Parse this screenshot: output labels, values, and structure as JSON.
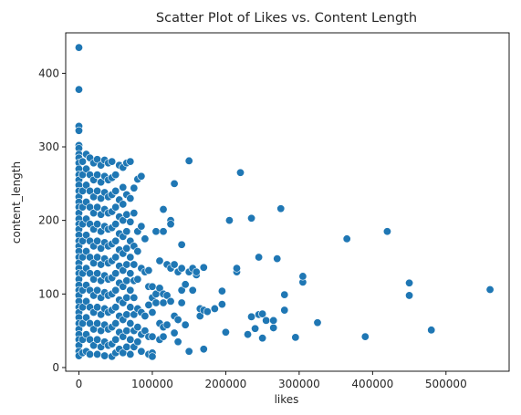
{
  "chart_data": {
    "type": "scatter",
    "title": "Scatter Plot of Likes vs. Content Length",
    "xlabel": "likes",
    "ylabel": "content_length",
    "xlim": [
      -18000,
      586000
    ],
    "ylim": [
      -5,
      455
    ],
    "xticks": [
      0,
      100000,
      200000,
      300000,
      400000,
      500000
    ],
    "xtick_labels": [
      "0",
      "100000",
      "200000",
      "300000",
      "400000",
      "500000"
    ],
    "yticks": [
      0,
      100,
      200,
      300,
      400
    ],
    "ytick_labels": [
      "0",
      "100",
      "200",
      "300",
      "400"
    ],
    "grid": false,
    "legend": "none",
    "marker_color": "#1f77b4",
    "points": [
      [
        0,
        435
      ],
      [
        0,
        378
      ],
      [
        0,
        328
      ],
      [
        0,
        322
      ],
      [
        0,
        302
      ],
      [
        0,
        298
      ],
      [
        0,
        290
      ],
      [
        0,
        285
      ],
      [
        0,
        278
      ],
      [
        0,
        270
      ],
      [
        0,
        262
      ],
      [
        0,
        255
      ],
      [
        0,
        248
      ],
      [
        0,
        240
      ],
      [
        0,
        232
      ],
      [
        0,
        225
      ],
      [
        0,
        218
      ],
      [
        0,
        210
      ],
      [
        0,
        202
      ],
      [
        0,
        195
      ],
      [
        0,
        188
      ],
      [
        0,
        180
      ],
      [
        0,
        172
      ],
      [
        0,
        165
      ],
      [
        0,
        158
      ],
      [
        0,
        150
      ],
      [
        0,
        142
      ],
      [
        0,
        135
      ],
      [
        0,
        128
      ],
      [
        0,
        120
      ],
      [
        0,
        112
      ],
      [
        0,
        105
      ],
      [
        0,
        98
      ],
      [
        0,
        90
      ],
      [
        0,
        82
      ],
      [
        0,
        75
      ],
      [
        0,
        68
      ],
      [
        0,
        60
      ],
      [
        0,
        52
      ],
      [
        0,
        45
      ],
      [
        0,
        38
      ],
      [
        0,
        30
      ],
      [
        0,
        22
      ],
      [
        0,
        16
      ],
      [
        5000,
        280
      ],
      [
        5000,
        262
      ],
      [
        5000,
        240
      ],
      [
        5000,
        218
      ],
      [
        5000,
        195
      ],
      [
        5000,
        172
      ],
      [
        5000,
        150
      ],
      [
        5000,
        128
      ],
      [
        5000,
        105
      ],
      [
        5000,
        82
      ],
      [
        5000,
        60
      ],
      [
        5000,
        38
      ],
      [
        5000,
        20
      ],
      [
        10000,
        290
      ],
      [
        10000,
        270
      ],
      [
        10000,
        248
      ],
      [
        10000,
        225
      ],
      [
        10000,
        202
      ],
      [
        10000,
        180
      ],
      [
        10000,
        158
      ],
      [
        10000,
        135
      ],
      [
        10000,
        112
      ],
      [
        10000,
        90
      ],
      [
        10000,
        68
      ],
      [
        10000,
        45
      ],
      [
        10000,
        22
      ],
      [
        15000,
        285
      ],
      [
        15000,
        262
      ],
      [
        15000,
        240
      ],
      [
        15000,
        218
      ],
      [
        15000,
        195
      ],
      [
        15000,
        172
      ],
      [
        15000,
        150
      ],
      [
        15000,
        128
      ],
      [
        15000,
        105
      ],
      [
        15000,
        82
      ],
      [
        15000,
        60
      ],
      [
        15000,
        38
      ],
      [
        15000,
        18
      ],
      [
        20000,
        278
      ],
      [
        20000,
        255
      ],
      [
        20000,
        232
      ],
      [
        20000,
        210
      ],
      [
        20000,
        188
      ],
      [
        20000,
        165
      ],
      [
        20000,
        142
      ],
      [
        20000,
        120
      ],
      [
        20000,
        98
      ],
      [
        20000,
        75
      ],
      [
        20000,
        52
      ],
      [
        20000,
        30
      ],
      [
        25000,
        283
      ],
      [
        25000,
        262
      ],
      [
        25000,
        240
      ],
      [
        25000,
        218
      ],
      [
        25000,
        195
      ],
      [
        25000,
        172
      ],
      [
        25000,
        150
      ],
      [
        25000,
        128
      ],
      [
        25000,
        105
      ],
      [
        25000,
        82
      ],
      [
        25000,
        60
      ],
      [
        25000,
        38
      ],
      [
        25000,
        18
      ],
      [
        30000,
        275
      ],
      [
        30000,
        252
      ],
      [
        30000,
        230
      ],
      [
        30000,
        208
      ],
      [
        30000,
        185
      ],
      [
        30000,
        162
      ],
      [
        30000,
        140
      ],
      [
        30000,
        118
      ],
      [
        30000,
        95
      ],
      [
        30000,
        72
      ],
      [
        30000,
        50
      ],
      [
        30000,
        28
      ],
      [
        35000,
        282
      ],
      [
        35000,
        260
      ],
      [
        35000,
        238
      ],
      [
        35000,
        215
      ],
      [
        35000,
        192
      ],
      [
        35000,
        170
      ],
      [
        35000,
        148
      ],
      [
        35000,
        125
      ],
      [
        35000,
        102
      ],
      [
        35000,
        80
      ],
      [
        35000,
        58
      ],
      [
        35000,
        35
      ],
      [
        35000,
        16
      ],
      [
        40000,
        278
      ],
      [
        40000,
        255
      ],
      [
        40000,
        232
      ],
      [
        40000,
        210
      ],
      [
        40000,
        188
      ],
      [
        40000,
        165
      ],
      [
        40000,
        142
      ],
      [
        40000,
        120
      ],
      [
        40000,
        98
      ],
      [
        40000,
        75
      ],
      [
        40000,
        52
      ],
      [
        40000,
        30
      ],
      [
        45000,
        280
      ],
      [
        45000,
        258
      ],
      [
        45000,
        235
      ],
      [
        45000,
        212
      ],
      [
        45000,
        190
      ],
      [
        45000,
        168
      ],
      [
        45000,
        145
      ],
      [
        45000,
        122
      ],
      [
        45000,
        100
      ],
      [
        45000,
        78
      ],
      [
        45000,
        55
      ],
      [
        45000,
        32
      ],
      [
        45000,
        15
      ],
      [
        50000,
        262
      ],
      [
        50000,
        240
      ],
      [
        50000,
        218
      ],
      [
        50000,
        195
      ],
      [
        50000,
        172
      ],
      [
        50000,
        150
      ],
      [
        50000,
        128
      ],
      [
        50000,
        105
      ],
      [
        50000,
        82
      ],
      [
        50000,
        60
      ],
      [
        50000,
        38
      ],
      [
        50000,
        20
      ],
      [
        55000,
        275
      ],
      [
        55000,
        228
      ],
      [
        55000,
        205
      ],
      [
        55000,
        182
      ],
      [
        55000,
        160
      ],
      [
        55000,
        138
      ],
      [
        55000,
        115
      ],
      [
        55000,
        92
      ],
      [
        55000,
        70
      ],
      [
        55000,
        48
      ],
      [
        55000,
        25
      ],
      [
        60000,
        272
      ],
      [
        60000,
        245
      ],
      [
        60000,
        222
      ],
      [
        60000,
        200
      ],
      [
        60000,
        178
      ],
      [
        60000,
        155
      ],
      [
        60000,
        132
      ],
      [
        60000,
        110
      ],
      [
        60000,
        88
      ],
      [
        60000,
        65
      ],
      [
        60000,
        42
      ],
      [
        60000,
        20
      ],
      [
        65000,
        278
      ],
      [
        65000,
        235
      ],
      [
        65000,
        208
      ],
      [
        65000,
        185
      ],
      [
        65000,
        162
      ],
      [
        65000,
        140
      ],
      [
        65000,
        118
      ],
      [
        65000,
        95
      ],
      [
        65000,
        72
      ],
      [
        65000,
        50
      ],
      [
        65000,
        28
      ],
      [
        70000,
        280
      ],
      [
        70000,
        230
      ],
      [
        70000,
        198
      ],
      [
        70000,
        172
      ],
      [
        70000,
        150
      ],
      [
        70000,
        128
      ],
      [
        70000,
        105
      ],
      [
        70000,
        82
      ],
      [
        70000,
        60
      ],
      [
        70000,
        38
      ],
      [
        70000,
        18
      ],
      [
        75000,
        244
      ],
      [
        75000,
        210
      ],
      [
        75000,
        165
      ],
      [
        75000,
        140
      ],
      [
        75000,
        118
      ],
      [
        75000,
        95
      ],
      [
        75000,
        72
      ],
      [
        75000,
        50
      ],
      [
        75000,
        28
      ],
      [
        80000,
        256
      ],
      [
        80000,
        185
      ],
      [
        80000,
        158
      ],
      [
        80000,
        120
      ],
      [
        80000,
        80
      ],
      [
        80000,
        55
      ],
      [
        80000,
        35
      ],
      [
        85000,
        260
      ],
      [
        85000,
        192
      ],
      [
        85000,
        135
      ],
      [
        85000,
        75
      ],
      [
        85000,
        45
      ],
      [
        85000,
        22
      ],
      [
        90000,
        175
      ],
      [
        90000,
        130
      ],
      [
        90000,
        70
      ],
      [
        90000,
        50
      ],
      [
        95000,
        132
      ],
      [
        95000,
        110
      ],
      [
        95000,
        85
      ],
      [
        95000,
        42
      ],
      [
        95000,
        18
      ],
      [
        100000,
        110
      ],
      [
        100000,
        95
      ],
      [
        100000,
        75
      ],
      [
        100000,
        42
      ],
      [
        100000,
        20
      ],
      [
        100000,
        15
      ],
      [
        105000,
        185
      ],
      [
        105000,
        100
      ],
      [
        105000,
        88
      ],
      [
        110000,
        145
      ],
      [
        110000,
        108
      ],
      [
        110000,
        60
      ],
      [
        110000,
        38
      ],
      [
        115000,
        215
      ],
      [
        115000,
        185
      ],
      [
        115000,
        100
      ],
      [
        115000,
        88
      ],
      [
        115000,
        55
      ],
      [
        115000,
        42
      ],
      [
        120000,
        140
      ],
      [
        120000,
        98
      ],
      [
        120000,
        58
      ],
      [
        125000,
        200
      ],
      [
        125000,
        195
      ],
      [
        125000,
        135
      ],
      [
        125000,
        90
      ],
      [
        130000,
        250
      ],
      [
        130000,
        140
      ],
      [
        130000,
        70
      ],
      [
        130000,
        47
      ],
      [
        135000,
        130
      ],
      [
        135000,
        65
      ],
      [
        135000,
        35
      ],
      [
        140000,
        167
      ],
      [
        140000,
        135
      ],
      [
        140000,
        105
      ],
      [
        140000,
        88
      ],
      [
        145000,
        113
      ],
      [
        145000,
        58
      ],
      [
        150000,
        281
      ],
      [
        150000,
        130
      ],
      [
        150000,
        22
      ],
      [
        155000,
        105
      ],
      [
        155000,
        135
      ],
      [
        160000,
        126
      ],
      [
        160000,
        130
      ],
      [
        165000,
        80
      ],
      [
        165000,
        70
      ],
      [
        170000,
        136
      ],
      [
        170000,
        78
      ],
      [
        170000,
        25
      ],
      [
        175000,
        76
      ],
      [
        185000,
        80
      ],
      [
        195000,
        86
      ],
      [
        195000,
        104
      ],
      [
        200000,
        48
      ],
      [
        205000,
        200
      ],
      [
        215000,
        130
      ],
      [
        215000,
        135
      ],
      [
        220000,
        265
      ],
      [
        230000,
        45
      ],
      [
        235000,
        203
      ],
      [
        235000,
        69
      ],
      [
        240000,
        53
      ],
      [
        245000,
        72
      ],
      [
        245000,
        150
      ],
      [
        250000,
        40
      ],
      [
        250000,
        73
      ],
      [
        255000,
        64
      ],
      [
        265000,
        54
      ],
      [
        265000,
        64
      ],
      [
        270000,
        148
      ],
      [
        275000,
        216
      ],
      [
        280000,
        99
      ],
      [
        280000,
        78
      ],
      [
        295000,
        41
      ],
      [
        305000,
        116
      ],
      [
        305000,
        124
      ],
      [
        325000,
        61
      ],
      [
        365000,
        175
      ],
      [
        390000,
        42
      ],
      [
        420000,
        185
      ],
      [
        450000,
        98
      ],
      [
        450000,
        115
      ],
      [
        480000,
        51
      ],
      [
        560000,
        106
      ]
    ]
  }
}
